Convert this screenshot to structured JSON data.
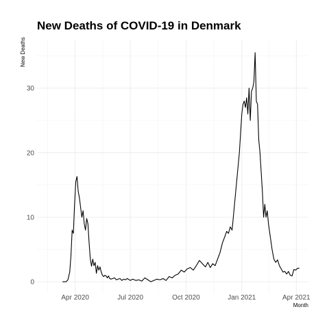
{
  "chart_data": {
    "type": "line",
    "title": "New Deaths of COVID-19 in Denmark",
    "xlabel": "Month",
    "ylabel": "New Deaths",
    "x_ticks": [
      {
        "date": "2020-04-01",
        "label": "Apr 2020"
      },
      {
        "date": "2020-07-01",
        "label": "Jul 2020"
      },
      {
        "date": "2020-10-01",
        "label": "Oct 2020"
      },
      {
        "date": "2021-01-01",
        "label": "Jan 2021"
      },
      {
        "date": "2021-04-01",
        "label": "Apr 2021"
      }
    ],
    "y_ticks": [
      0,
      10,
      20,
      30
    ],
    "xlim": [
      "2020-01-29",
      "2021-04-21"
    ],
    "ylim": [
      -1.8,
      37.5
    ],
    "grid": true,
    "legend": "none",
    "line_color": "#000000",
    "series": [
      {
        "x": [
          "2020-03-11",
          "2020-03-14",
          "2020-03-17",
          "2020-03-20",
          "2020-03-23",
          "2020-03-25",
          "2020-03-27",
          "2020-03-29",
          "2020-03-31",
          "2020-04-02",
          "2020-04-04",
          "2020-04-06",
          "2020-04-08",
          "2020-04-10",
          "2020-04-12",
          "2020-04-14",
          "2020-04-16",
          "2020-04-18",
          "2020-04-20",
          "2020-04-22",
          "2020-04-24",
          "2020-04-26",
          "2020-04-28",
          "2020-04-30",
          "2020-05-02",
          "2020-05-04",
          "2020-05-06",
          "2020-05-08",
          "2020-05-10",
          "2020-05-12",
          "2020-05-14",
          "2020-05-16",
          "2020-05-18",
          "2020-05-20",
          "2020-05-22",
          "2020-05-24",
          "2020-05-26",
          "2020-05-28",
          "2020-05-30",
          "2020-06-02",
          "2020-06-05",
          "2020-06-08",
          "2020-06-11",
          "2020-06-14",
          "2020-06-17",
          "2020-06-20",
          "2020-06-23",
          "2020-06-26",
          "2020-07-01",
          "2020-07-05",
          "2020-07-10",
          "2020-07-15",
          "2020-07-20",
          "2020-07-25",
          "2020-07-30",
          "2020-08-04",
          "2020-08-09",
          "2020-08-14",
          "2020-08-19",
          "2020-08-24",
          "2020-08-29",
          "2020-09-03",
          "2020-09-08",
          "2020-09-13",
          "2020-09-18",
          "2020-09-23",
          "2020-09-28",
          "2020-10-03",
          "2020-10-08",
          "2020-10-13",
          "2020-10-18",
          "2020-10-23",
          "2020-10-28",
          "2020-11-02",
          "2020-11-06",
          "2020-11-10",
          "2020-11-14",
          "2020-11-18",
          "2020-11-22",
          "2020-11-26",
          "2020-11-30",
          "2020-12-04",
          "2020-12-07",
          "2020-12-10",
          "2020-12-13",
          "2020-12-16",
          "2020-12-19",
          "2020-12-22",
          "2020-12-25",
          "2020-12-28",
          "2020-12-30",
          "2021-01-01",
          "2021-01-03",
          "2021-01-05",
          "2021-01-07",
          "2021-01-09",
          "2021-01-11",
          "2021-01-13",
          "2021-01-15",
          "2021-01-17",
          "2021-01-19",
          "2021-01-21",
          "2021-01-23",
          "2021-01-25",
          "2021-01-27",
          "2021-01-29",
          "2021-01-31",
          "2021-02-02",
          "2021-02-04",
          "2021-02-06",
          "2021-02-08",
          "2021-02-10",
          "2021-02-12",
          "2021-02-14",
          "2021-02-17",
          "2021-02-20",
          "2021-02-23",
          "2021-02-26",
          "2021-03-01",
          "2021-03-04",
          "2021-03-07",
          "2021-03-10",
          "2021-03-13",
          "2021-03-16",
          "2021-03-19",
          "2021-03-22",
          "2021-03-25",
          "2021-03-28",
          "2021-03-31",
          "2021-04-03",
          "2021-04-06"
        ],
        "y": [
          0,
          0,
          0,
          0.3,
          1.5,
          4,
          8,
          7.5,
          12,
          15.5,
          16.3,
          14,
          13,
          11.5,
          10,
          11,
          9,
          8,
          9.8,
          9,
          6,
          3.5,
          2.4,
          3.5,
          2.5,
          3,
          1.3,
          2.5,
          1.8,
          2.3,
          1.5,
          1,
          0.8,
          1,
          0.9,
          0.6,
          0.9,
          0.5,
          0.4,
          0.5,
          0.6,
          0.3,
          0.4,
          0.5,
          0.2,
          0.4,
          0.3,
          0.5,
          0.2,
          0.4,
          0.2,
          0.3,
          0.1,
          0.6,
          0.3,
          0,
          0.2,
          0.4,
          0.3,
          0.5,
          0.2,
          0.8,
          0.6,
          1,
          1.2,
          1.8,
          1.5,
          2,
          2.2,
          1.8,
          2.5,
          3.3,
          2.8,
          2.3,
          3,
          2.2,
          2.8,
          2.5,
          3.5,
          4.5,
          6,
          7,
          7.8,
          7.5,
          8.5,
          8,
          11,
          14,
          17,
          20,
          23,
          26,
          27.5,
          28,
          27,
          28.5,
          26,
          30,
          25,
          29.5,
          30,
          31,
          35.5,
          28,
          27.5,
          22,
          20,
          17,
          14,
          10,
          12,
          10,
          11,
          9,
          7,
          5,
          3.5,
          3,
          3.4,
          2.5,
          2,
          1.5,
          1.6,
          1.2,
          1.6,
          1,
          0.9,
          1.9,
          1.8,
          2.1,
          2.1
        ]
      }
    ]
  }
}
